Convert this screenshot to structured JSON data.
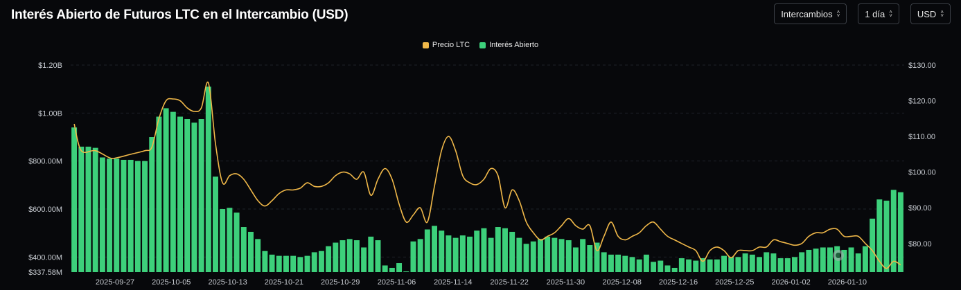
{
  "header": {
    "title": "Interés Abierto de Futuros LTC en el Intercambio (USD)",
    "controls": [
      {
        "name": "exchange-select",
        "label": "Intercambios"
      },
      {
        "name": "interval-select",
        "label": "1 día"
      },
      {
        "name": "currency-select",
        "label": "USD"
      }
    ]
  },
  "colors": {
    "price": "#f0b849",
    "open_interest": "#3dd07b",
    "grid": "#1e222a",
    "background": "#07080b"
  },
  "chart_data": {
    "type": "bar",
    "legend_placement": "top-center",
    "legend": [
      {
        "label": "Precio LTC",
        "color": "#f0b849"
      },
      {
        "label": "Interés Abierto",
        "color": "#3dd07b"
      }
    ],
    "x_tick_labels": [
      "2025-09-27",
      "2025-10-05",
      "2025-10-13",
      "2025-10-21",
      "2025-10-29",
      "2025-11-06",
      "2025-11-14",
      "2025-11-22",
      "2025-11-30",
      "2025-12-08",
      "2025-12-16",
      "2025-12-25",
      "2026-01-02",
      "2026-01-10"
    ],
    "y_left": {
      "min": 337.58,
      "max": 1200,
      "unit": "M USD",
      "ticks": [
        337.58,
        400,
        600,
        800,
        1000,
        1200
      ],
      "tick_labels": [
        "$337.58M",
        "$400.00M",
        "$600.00M",
        "$800.00M",
        "$1.00B",
        "$1.20B"
      ]
    },
    "y_right": {
      "min": 72,
      "max": 130,
      "ticks": [
        80,
        90,
        100,
        110,
        120,
        130
      ],
      "tick_labels": [
        "$80.00",
        "$90.00",
        "$100.00",
        "$110.00",
        "$120.00",
        "$130.00"
      ]
    },
    "grid": true,
    "series": [
      {
        "name": "Interés Abierto",
        "type": "bar",
        "axis": "left",
        "values": [
          940,
          860,
          860,
          855,
          815,
          810,
          810,
          805,
          805,
          800,
          800,
          900,
          985,
          1020,
          1005,
          985,
          975,
          960,
          975,
          1110,
          735,
          600,
          605,
          585,
          525,
          505,
          475,
          425,
          410,
          405,
          405,
          405,
          400,
          405,
          420,
          425,
          445,
          460,
          470,
          475,
          470,
          440,
          485,
          470,
          365,
          355,
          375,
          340,
          465,
          475,
          515,
          530,
          510,
          490,
          480,
          490,
          485,
          510,
          520,
          480,
          525,
          520,
          505,
          480,
          455,
          465,
          475,
          485,
          480,
          475,
          470,
          440,
          475,
          450,
          460,
          420,
          410,
          410,
          405,
          400,
          390,
          410,
          380,
          385,
          365,
          355,
          395,
          390,
          385,
          395,
          390,
          390,
          405,
          400,
          400,
          415,
          410,
          400,
          420,
          415,
          395,
          395,
          400,
          420,
          430,
          435,
          440,
          440,
          445,
          430,
          440,
          415,
          445,
          560,
          640,
          635,
          680,
          670
        ]
      },
      {
        "name": "Precio LTC",
        "type": "line",
        "axis": "right",
        "anchors": [
          [
            0,
            113.5
          ],
          [
            1,
            106
          ],
          [
            3,
            106
          ],
          [
            5,
            104
          ],
          [
            6,
            104
          ],
          [
            8,
            105
          ],
          [
            10,
            106
          ],
          [
            11,
            107
          ],
          [
            12,
            115
          ],
          [
            13,
            120
          ],
          [
            14,
            120.5
          ],
          [
            15,
            120
          ],
          [
            16,
            118
          ],
          [
            17,
            117
          ],
          [
            18,
            118
          ],
          [
            19,
            125
          ],
          [
            20,
            108
          ],
          [
            21,
            97
          ],
          [
            22,
            99
          ],
          [
            23,
            99.5
          ],
          [
            24,
            98
          ],
          [
            25,
            95
          ],
          [
            26,
            92
          ],
          [
            27,
            90.5
          ],
          [
            28,
            92
          ],
          [
            29,
            94
          ],
          [
            30,
            95
          ],
          [
            31,
            95
          ],
          [
            32,
            95.5
          ],
          [
            33,
            97
          ],
          [
            34,
            96
          ],
          [
            35,
            96
          ],
          [
            36,
            97
          ],
          [
            37,
            99
          ],
          [
            38,
            100
          ],
          [
            39,
            99.5
          ],
          [
            40,
            98
          ],
          [
            41,
            100
          ],
          [
            42,
            93.5
          ],
          [
            43,
            98
          ],
          [
            44,
            101
          ],
          [
            45,
            98
          ],
          [
            46,
            91
          ],
          [
            47,
            86
          ],
          [
            48,
            88
          ],
          [
            49,
            90
          ],
          [
            50,
            86
          ],
          [
            51,
            96
          ],
          [
            52,
            106
          ],
          [
            53,
            110
          ],
          [
            54,
            106
          ],
          [
            55,
            99
          ],
          [
            56,
            97
          ],
          [
            57,
            96.5
          ],
          [
            58,
            98
          ],
          [
            59,
            101
          ],
          [
            60,
            99
          ],
          [
            61,
            90
          ],
          [
            62,
            95
          ],
          [
            63,
            92
          ],
          [
            64,
            86
          ],
          [
            65,
            83
          ],
          [
            66,
            81
          ],
          [
            67,
            82
          ],
          [
            68,
            83
          ],
          [
            69,
            85
          ],
          [
            70,
            87
          ],
          [
            71,
            85
          ],
          [
            72,
            84
          ],
          [
            73,
            85
          ],
          [
            74,
            78
          ],
          [
            75,
            82
          ],
          [
            76,
            86
          ],
          [
            77,
            82
          ],
          [
            78,
            81
          ],
          [
            79,
            82
          ],
          [
            80,
            83
          ],
          [
            81,
            85
          ],
          [
            82,
            86
          ],
          [
            83,
            84
          ],
          [
            84,
            82
          ],
          [
            85,
            81
          ],
          [
            86,
            80
          ],
          [
            87,
            79
          ],
          [
            88,
            78
          ],
          [
            89,
            75
          ],
          [
            90,
            78
          ],
          [
            91,
            79
          ],
          [
            92,
            78
          ],
          [
            93,
            76
          ],
          [
            94,
            78
          ],
          [
            95,
            78
          ],
          [
            96,
            78
          ],
          [
            97,
            79
          ],
          [
            98,
            79
          ],
          [
            99,
            81
          ],
          [
            100,
            80.5
          ],
          [
            101,
            80
          ],
          [
            102,
            79.5
          ],
          [
            103,
            80
          ],
          [
            104,
            82
          ],
          [
            105,
            83
          ],
          [
            106,
            83
          ],
          [
            107,
            84
          ],
          [
            108,
            84
          ],
          [
            109,
            82
          ],
          [
            110,
            82
          ],
          [
            111,
            82
          ],
          [
            112,
            80
          ],
          [
            113,
            78
          ],
          [
            114,
            75
          ],
          [
            115,
            73
          ],
          [
            116,
            75
          ],
          [
            117,
            74
          ]
        ]
      }
    ]
  }
}
